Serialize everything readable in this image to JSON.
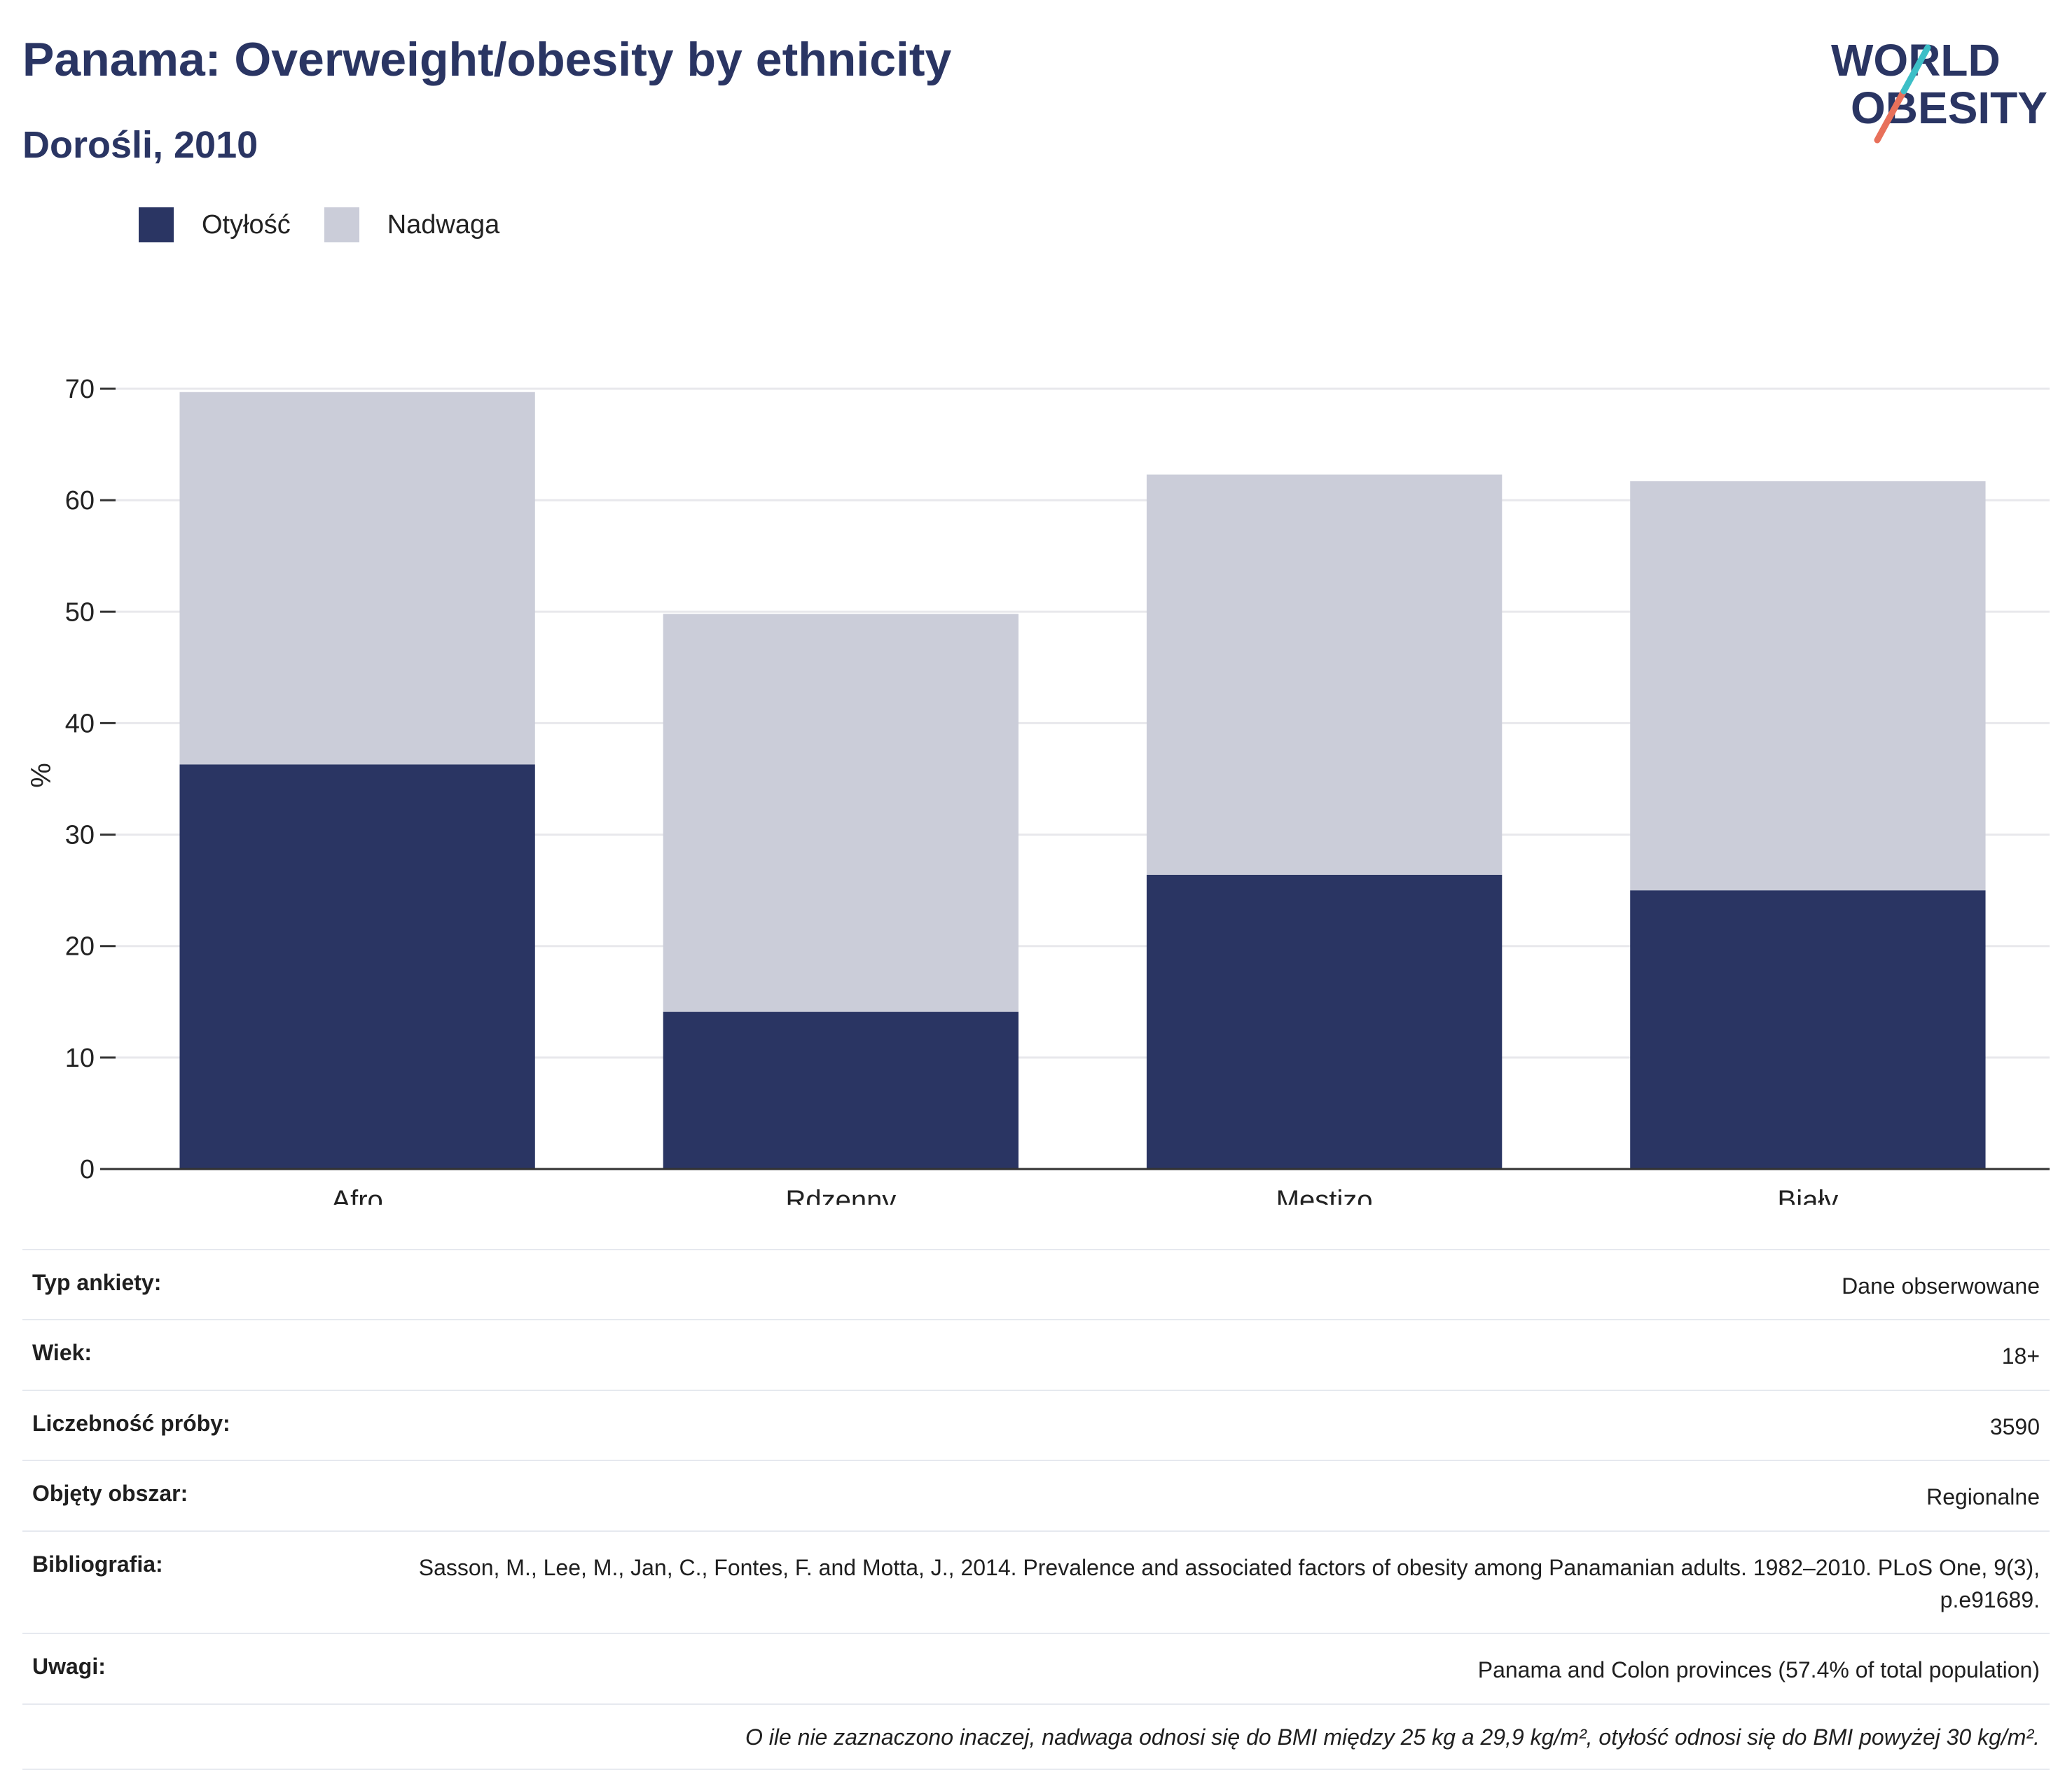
{
  "header": {
    "title": "Panama: Overweight/obesity by ethnicity",
    "subtitle": "Dorośli, 2010"
  },
  "logo": {
    "line1": "WORLD",
    "line2": "OBESITY"
  },
  "legend": [
    {
      "label": "Otyłość",
      "color": "#2a3563"
    },
    {
      "label": "Nadwaga",
      "color": "#cbcdd9"
    }
  ],
  "chart_data": {
    "type": "bar",
    "stacked": true,
    "categories": [
      "Afro",
      "Rdzenny",
      "Mestizo",
      "Biały"
    ],
    "series": [
      {
        "name": "Otyłość",
        "values": [
          36.3,
          14.1,
          26.4,
          25.0
        ],
        "color": "#2a3563"
      },
      {
        "name": "Nadwaga",
        "values": [
          33.4,
          35.7,
          35.9,
          36.7
        ],
        "color": "#cbcdd9"
      }
    ],
    "ylabel": "%",
    "ylim": [
      0,
      70
    ],
    "yticks": [
      0,
      10,
      20,
      30,
      40,
      50,
      60,
      70
    ],
    "grid": true,
    "legend_position": "top-left"
  },
  "meta": {
    "rows": [
      {
        "key": "Typ ankiety:",
        "value": "Dane obserwowane"
      },
      {
        "key": "Wiek:",
        "value": "18+"
      },
      {
        "key": "Liczebność próby:",
        "value": "3590"
      },
      {
        "key": "Objęty obszar:",
        "value": "Regionalne"
      },
      {
        "key": "Bibliografia:",
        "value": "Sasson, M., Lee, M., Jan, C., Fontes, F. and Motta, J., 2014. Prevalence and associated factors of obesity among Panamanian adults. 1982–2010. PLoS One, 9(3), p.e91689."
      },
      {
        "key": "Uwagi:",
        "value": "Panama and Colon provinces (57.4% of total population)"
      }
    ],
    "note": "O ile nie zaznaczono inaczej, nadwaga odnosi się do BMI między 25 kg a 29,9 kg/m², otyłość odnosi się do BMI powyżej 30 kg/m²."
  }
}
